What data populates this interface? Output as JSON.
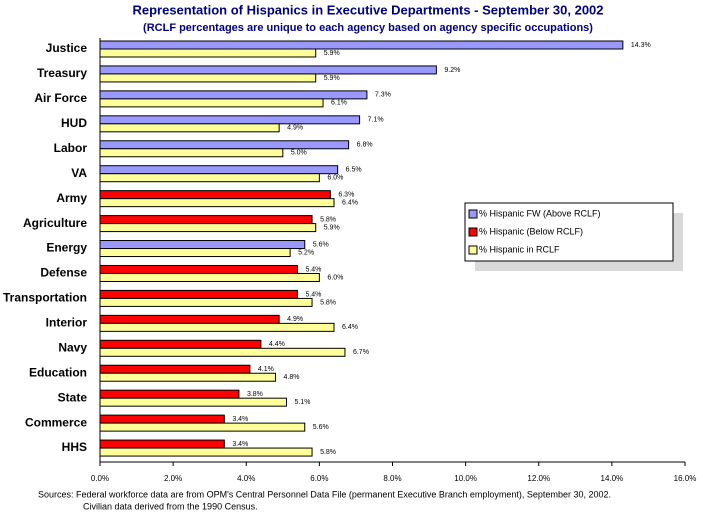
{
  "chart_data": {
    "type": "bar",
    "orientation": "horizontal",
    "title": "Representation of Hispanics in Executive Departments - September 30, 2002",
    "subtitle": "(RCLF percentages are unique to each agency based on agency specific occupations)",
    "categories": [
      "Justice",
      "Treasury",
      "Air Force",
      "HUD",
      "Labor",
      "VA",
      "Army",
      "Agriculture",
      "Energy",
      "Defense",
      "Transportation",
      "Interior",
      "Navy",
      "Education",
      "State",
      "Commerce",
      "HHS"
    ],
    "series": [
      {
        "name": "% Hispanic FW (Above RCLF)",
        "color": "#9999ff",
        "values": [
          14.3,
          9.2,
          7.3,
          7.1,
          6.8,
          6.5,
          null,
          null,
          5.6,
          null,
          null,
          null,
          null,
          null,
          null,
          null,
          null
        ],
        "value_labels": [
          "14.3%",
          "9.2%",
          "7.3%",
          "7.1%",
          "6.8%",
          "6.5%",
          null,
          null,
          "5.6%",
          null,
          null,
          null,
          null,
          null,
          null,
          null,
          null
        ]
      },
      {
        "name": "% Hispanic (Below RCLF)",
        "color": "#ff0000",
        "values": [
          null,
          null,
          null,
          null,
          null,
          null,
          6.3,
          5.8,
          null,
          5.4,
          5.4,
          4.9,
          4.4,
          4.1,
          3.8,
          3.4,
          3.4
        ],
        "value_labels": [
          null,
          null,
          null,
          null,
          null,
          null,
          "6.3%",
          "5.8%",
          null,
          "5.4%",
          "5.4%",
          "4.9%",
          "4.4%",
          "4.1%",
          "3.8%",
          "3.4%",
          "3.4%"
        ]
      },
      {
        "name": "% Hispanic in RCLF",
        "color": "#ffff99",
        "values": [
          5.9,
          5.9,
          6.1,
          4.9,
          5.0,
          6.0,
          6.4,
          5.9,
          5.2,
          6.0,
          5.8,
          6.4,
          6.7,
          4.8,
          5.1,
          5.6,
          5.8
        ],
        "value_labels": [
          "5.9%",
          "5.9%",
          "6.1%",
          "4.9%",
          "5.0%",
          "6.0%",
          "6.4%",
          "5.9%",
          "5.2%",
          "6.0%",
          "5.8%",
          "6.4%",
          "6.7%",
          "4.8%",
          "5.1%",
          "5.6%",
          "5.8%"
        ]
      }
    ],
    "xlim": [
      0,
      16
    ],
    "xticks": [
      {
        "value": 0,
        "label": "0.0%"
      },
      {
        "value": 2,
        "label": "2.0%"
      },
      {
        "value": 4,
        "label": "4.0%"
      },
      {
        "value": 6,
        "label": "6.0%"
      },
      {
        "value": 8,
        "label": "8.0%"
      },
      {
        "value": 10,
        "label": "10.0%"
      },
      {
        "value": 12,
        "label": "12.0%"
      },
      {
        "value": 14,
        "label": "14.0%"
      },
      {
        "value": 16,
        "label": "16.0%"
      }
    ],
    "footnotes": [
      "Sources: Federal workforce data are from OPM's Central Personnel Data File (permanent Executive Branch employment), September 30, 2002.",
      "Civilian data derived from the 1990 Census."
    ]
  }
}
